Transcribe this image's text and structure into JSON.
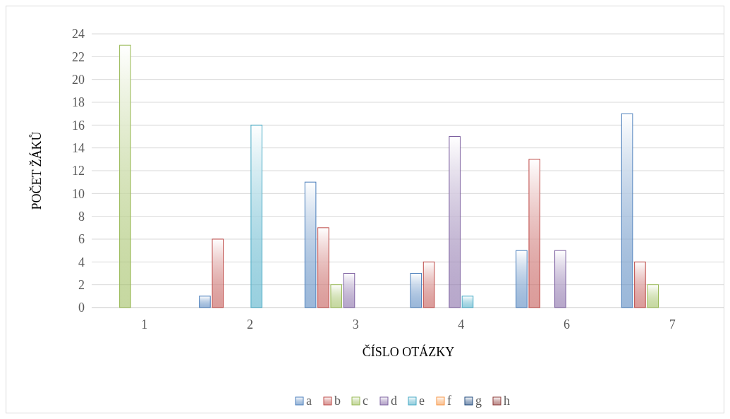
{
  "chart_data": {
    "type": "bar",
    "xlabel": "ČÍSLO OTÁZKY",
    "ylabel": "POČET ŽÁKŮ",
    "categories": [
      "1",
      "2",
      "3",
      "4",
      "6",
      "7"
    ],
    "series": [
      {
        "name": "a",
        "color": "#4a7ebb",
        "values": [
          0,
          1,
          11,
          3,
          5,
          17
        ]
      },
      {
        "name": "b",
        "color": "#be4b48",
        "values": [
          0,
          6,
          7,
          4,
          13,
          4
        ]
      },
      {
        "name": "c",
        "color": "#98b954",
        "values": [
          23,
          0,
          2,
          0,
          0,
          2
        ]
      },
      {
        "name": "d",
        "color": "#7d60a0",
        "values": [
          0,
          0,
          3,
          15,
          5,
          0
        ]
      },
      {
        "name": "e",
        "color": "#46aac5",
        "values": [
          0,
          16,
          0,
          1,
          0,
          0
        ]
      },
      {
        "name": "f",
        "color": "#f79646",
        "values": [
          0,
          0,
          0,
          0,
          0,
          0
        ]
      },
      {
        "name": "g",
        "color": "#1f497d",
        "values": [
          0,
          0,
          0,
          0,
          0,
          0
        ]
      },
      {
        "name": "h",
        "color": "#8c3836",
        "values": [
          0,
          0,
          0,
          0,
          0,
          0
        ]
      }
    ],
    "ylim": [
      0,
      24
    ],
    "yticks": [
      0,
      2,
      4,
      6,
      8,
      10,
      12,
      14,
      16,
      18,
      20,
      22,
      24
    ],
    "grid": "y",
    "legend": "bottom"
  }
}
